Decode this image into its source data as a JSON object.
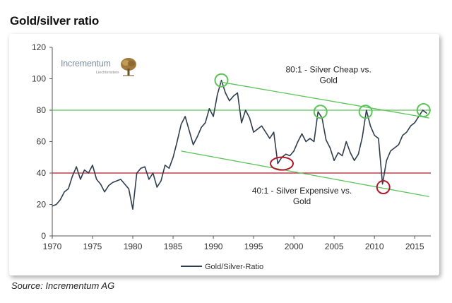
{
  "page": {
    "title": "Gold/silver ratio",
    "source": "Source: Incrementum AG"
  },
  "logo": {
    "name": "Incrementum",
    "sub": "Liechtenstein",
    "icon": "tree-icon"
  },
  "colors": {
    "series": "#2f3e4e",
    "green": "#5cc45a",
    "red": "#b0192a",
    "axis": "#555555"
  },
  "chart_data": {
    "type": "line",
    "title": "Gold/silver ratio",
    "xlabel": "",
    "ylabel": "",
    "xlim": [
      1970,
      2017
    ],
    "ylim": [
      0,
      120
    ],
    "x_ticks": [
      1970,
      1975,
      1980,
      1985,
      1990,
      1995,
      2000,
      2005,
      2010,
      2015
    ],
    "y_ticks": [
      0,
      20,
      40,
      60,
      80,
      100,
      120
    ],
    "grid": false,
    "legend": {
      "position": "bottom-center",
      "entries": [
        "Gold/Silver-Ratio"
      ]
    },
    "series": [
      {
        "name": "Gold/Silver-Ratio",
        "x": [
          1970.0,
          1970.5,
          1971.0,
          1971.5,
          1972.0,
          1972.5,
          1973.0,
          1973.5,
          1974.0,
          1974.5,
          1975.0,
          1975.5,
          1976.0,
          1976.5,
          1977.0,
          1977.5,
          1978.0,
          1978.5,
          1979.0,
          1979.5,
          1980.0,
          1980.5,
          1981.0,
          1981.5,
          1982.0,
          1982.5,
          1983.0,
          1983.5,
          1984.0,
          1984.5,
          1985.0,
          1985.5,
          1986.0,
          1986.5,
          1987.0,
          1987.5,
          1988.0,
          1988.5,
          1989.0,
          1989.5,
          1990.0,
          1990.5,
          1991.0,
          1991.5,
          1992.0,
          1992.5,
          1993.0,
          1993.5,
          1994.0,
          1994.5,
          1995.0,
          1995.5,
          1996.0,
          1996.5,
          1997.0,
          1997.5,
          1998.0,
          1998.5,
          1999.0,
          1999.5,
          2000.0,
          2000.5,
          2001.0,
          2001.5,
          2002.0,
          2002.5,
          2003.0,
          2003.5,
          2004.0,
          2004.5,
          2005.0,
          2005.5,
          2006.0,
          2006.5,
          2007.0,
          2007.5,
          2008.0,
          2008.5,
          2009.0,
          2009.5,
          2010.0,
          2010.5,
          2011.0,
          2011.5,
          2012.0,
          2012.5,
          2013.0,
          2013.5,
          2014.0,
          2014.5,
          2015.0,
          2015.5,
          2016.0,
          2016.5
        ],
        "y": [
          19,
          20,
          23,
          28,
          30,
          38,
          44,
          36,
          42,
          40,
          45,
          36,
          33,
          28,
          32,
          34,
          35,
          36,
          33,
          30,
          17,
          40,
          43,
          44,
          36,
          40,
          31,
          35,
          45,
          43,
          50,
          60,
          71,
          76,
          67,
          58,
          63,
          69,
          72,
          81,
          76,
          90,
          99,
          91,
          86,
          89,
          91,
          72,
          80,
          75,
          66,
          68,
          70,
          66,
          62,
          66,
          46,
          50,
          52,
          51,
          54,
          60,
          65,
          60,
          62,
          60,
          79,
          75,
          61,
          56,
          48,
          53,
          51,
          60,
          53,
          48,
          52,
          63,
          80,
          70,
          64,
          62,
          33,
          48,
          54,
          56,
          58,
          64,
          66,
          70,
          72,
          76,
          80,
          78
        ]
      }
    ],
    "reference_lines": [
      {
        "label": "80:1 - Silver Cheap vs. Gold",
        "y": 80
      },
      {
        "label": "40:1 - Silver Expensive vs. Gold",
        "y": 40
      }
    ],
    "trend_lines": [
      {
        "name": "upper-trendline",
        "x": [
          1990.8,
          2016.8
        ],
        "y": [
          98,
          75
        ]
      },
      {
        "name": "lower-trendline",
        "x": [
          1986.0,
          2016.8
        ],
        "y": [
          54,
          25
        ]
      }
    ],
    "highlight_markers": [
      {
        "name": "peak-1991-circle",
        "x": 1991.0,
        "y": 99,
        "color": "green"
      },
      {
        "name": "peak-2003-circle",
        "x": 2003.3,
        "y": 79,
        "color": "green"
      },
      {
        "name": "peak-2008-circle",
        "x": 2008.9,
        "y": 79,
        "color": "green"
      },
      {
        "name": "peak-2016-circle",
        "x": 2016.1,
        "y": 80,
        "color": "green"
      },
      {
        "name": "trough-1998-circle",
        "x": 1998.5,
        "y": 46,
        "color": "red"
      },
      {
        "name": "trough-2011-circle",
        "x": 2011.1,
        "y": 31,
        "color": "red"
      }
    ],
    "annotations": [
      {
        "name": "silver-cheap-annotation",
        "lines": [
          "80:1 - Silver Cheap vs.",
          "Gold"
        ],
        "x": 2004.3,
        "y": 104
      },
      {
        "name": "silver-expensive-annotation",
        "lines": [
          "40:1 - Silver Expensive vs.",
          "Gold"
        ],
        "x": 2001.0,
        "y": 27
      }
    ]
  }
}
